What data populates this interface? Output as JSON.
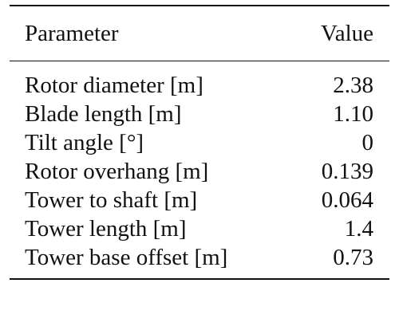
{
  "table": {
    "header": {
      "parameter": "Parameter",
      "value": "Value"
    },
    "rows": [
      {
        "parameter": "Rotor diameter [m]",
        "value": "2.38"
      },
      {
        "parameter": "Blade length [m]",
        "value": "1.10"
      },
      {
        "parameter": "Tilt angle [°]",
        "value": "0"
      },
      {
        "parameter": "Rotor overhang [m]",
        "value": "0.139"
      },
      {
        "parameter": "Tower to shaft [m]",
        "value": "0.064"
      },
      {
        "parameter": "Tower length [m]",
        "value": "1.4"
      },
      {
        "parameter": "Tower base offset [m]",
        "value": "0.73"
      }
    ]
  }
}
